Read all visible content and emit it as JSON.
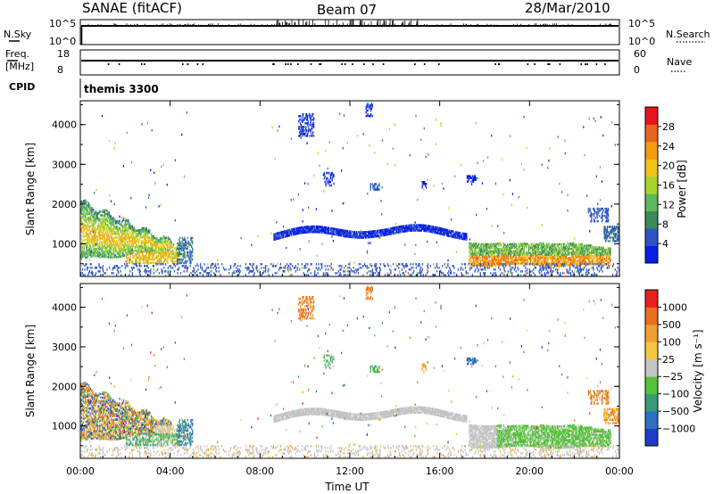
{
  "header": {
    "station": "SANAE (fitACF)",
    "beam": "Beam 07",
    "date": "28/Mar/2010"
  },
  "status_panels": {
    "nsky": {
      "label": "N.Sky",
      "ticks": [
        "10^5",
        "10^0"
      ]
    },
    "nsearch": {
      "label": "N.Search",
      "ticks": [
        "10^5",
        "10^0"
      ]
    },
    "freq": {
      "label_top": "Freq.",
      "label_bottom": "[MHz]",
      "ticks": [
        "18",
        "8"
      ]
    },
    "nave": {
      "label": "Nave",
      "ticks": [
        "60",
        "0"
      ]
    },
    "cpid": {
      "label": "CPID",
      "value": "themis 3300"
    }
  },
  "colors": {
    "power": [
      "#0a1ee8",
      "#2b55c4",
      "#3c8a5a",
      "#5cb85c",
      "#a8d42a",
      "#f0c419",
      "#f39c12",
      "#e8641e",
      "#e8141e"
    ],
    "velocity": [
      "#1e3cc8",
      "#2e6fc0",
      "#3a9a7a",
      "#56c23a",
      "#c4c4c4",
      "#f5c842",
      "#f0a030",
      "#e8701e",
      "#e82020"
    ]
  },
  "chart_data": [
    {
      "type": "heatmap",
      "name": "power-panel",
      "ylabel": "Slant Range [km]",
      "ylim": [
        180,
        4600
      ],
      "yticks": [
        "1000",
        "2000",
        "3000",
        "4000"
      ],
      "xlim": [
        0,
        24
      ],
      "colorbar": {
        "label": "Power [dB]",
        "ticks": [
          "4",
          "8",
          "12",
          "16",
          "20",
          "24",
          "28"
        ],
        "range": [
          0,
          32
        ]
      }
    },
    {
      "type": "heatmap",
      "name": "velocity-panel",
      "ylabel": "Slant Range [km]",
      "ylim": [
        180,
        4600
      ],
      "yticks": [
        "1000",
        "2000",
        "3000",
        "4000"
      ],
      "xlim": [
        0,
        24
      ],
      "xticks": [
        "00:00",
        "04:00",
        "08:00",
        "12:00",
        "16:00",
        "20:00",
        "00:00"
      ],
      "xlabel": "Time UT",
      "colorbar": {
        "label": "Velocity [m s⁻¹]",
        "ticks": [
          "1000",
          "500",
          "100",
          "25",
          "−25",
          "−100",
          "−500",
          "−1000"
        ]
      }
    }
  ]
}
